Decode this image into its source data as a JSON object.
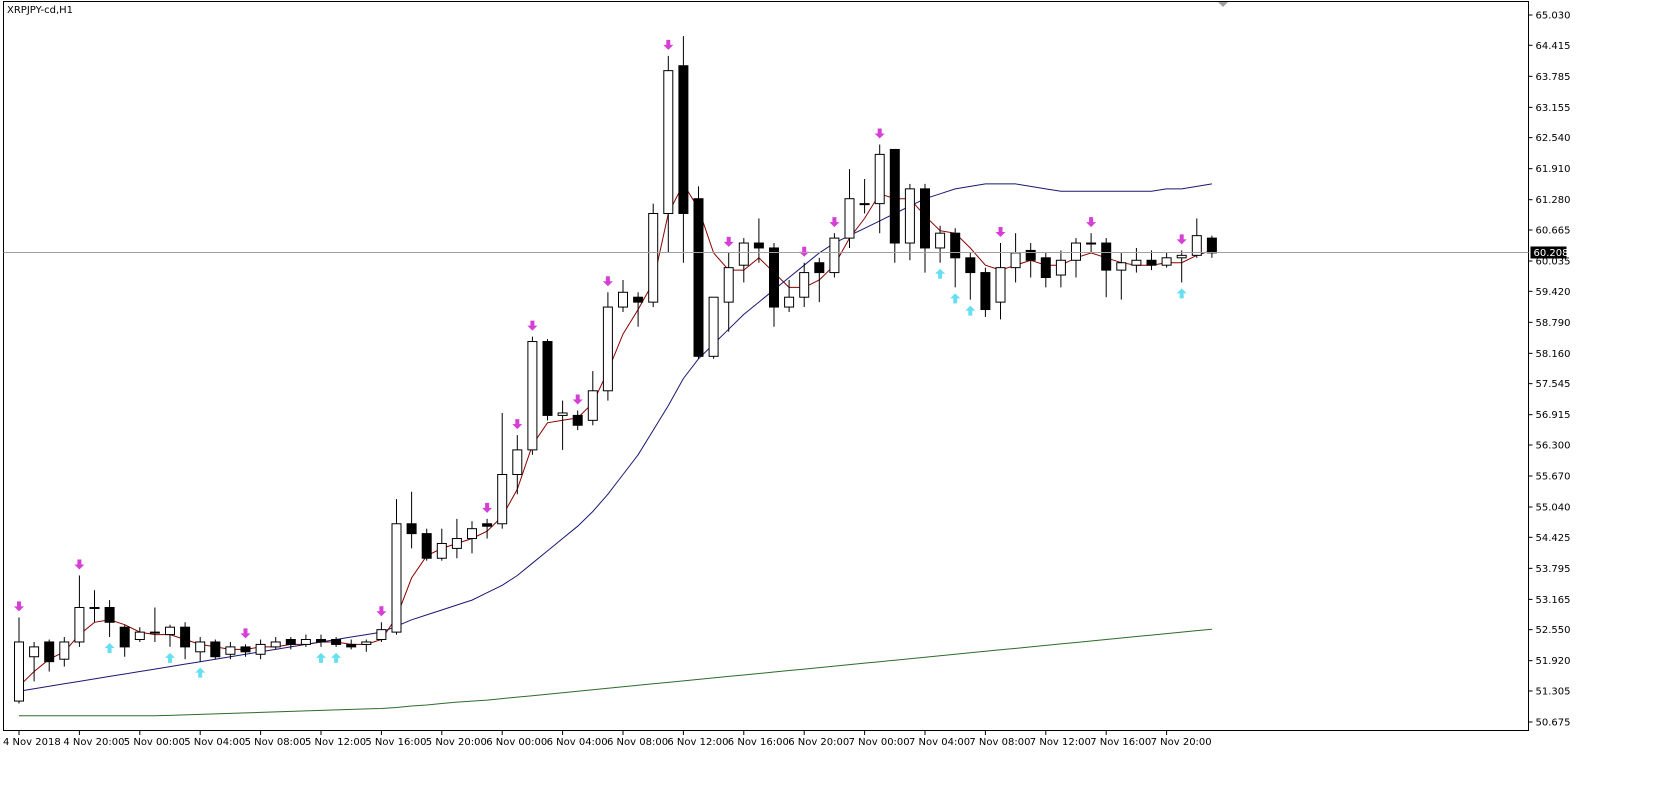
{
  "window": {
    "title": "XRPJPY-cd,H1"
  },
  "colors": {
    "background": "#ffffff",
    "bull_candle": "#ffffff",
    "bear_candle": "#000000",
    "candle_outline": "#000000",
    "ma_fast": "#8b0000",
    "ma_mid": "#191970",
    "ma_slow": "#2e6b2e",
    "arrow_sell": "#d63fd6",
    "arrow_buy": "#66e0f0",
    "price_line": "#a0a0a0",
    "current_price_bg": "#000000",
    "current_price_fg": "#ffffff"
  },
  "chart_data": {
    "type": "candlestick",
    "symbol": "XRPJPY-cd",
    "timeframe": "H1",
    "current_price": "60.208",
    "ylim": [
      50.675,
      65.03
    ],
    "y_ticks": [
      "65.030",
      "64.415",
      "63.785",
      "63.155",
      "62.540",
      "61.910",
      "61.280",
      "60.665",
      "60.035",
      "59.420",
      "58.790",
      "58.160",
      "57.545",
      "56.915",
      "56.300",
      "55.670",
      "55.040",
      "54.425",
      "53.795",
      "53.165",
      "52.550",
      "51.920",
      "51.305",
      "50.675"
    ],
    "x_ticks": [
      {
        "i": 0,
        "label": "4 Nov 2018"
      },
      {
        "i": 4,
        "label": "4 Nov 20:00"
      },
      {
        "i": 8,
        "label": "5 Nov 00:00"
      },
      {
        "i": 12,
        "label": "5 Nov 04:00"
      },
      {
        "i": 16,
        "label": "5 Nov 08:00"
      },
      {
        "i": 20,
        "label": "5 Nov 12:00"
      },
      {
        "i": 24,
        "label": "5 Nov 16:00"
      },
      {
        "i": 28,
        "label": "5 Nov 20:00"
      },
      {
        "i": 32,
        "label": "6 Nov 00:00"
      },
      {
        "i": 36,
        "label": "6 Nov 04:00"
      },
      {
        "i": 40,
        "label": "6 Nov 08:00"
      },
      {
        "i": 44,
        "label": "6 Nov 12:00"
      },
      {
        "i": 48,
        "label": "6 Nov 16:00"
      },
      {
        "i": 52,
        "label": "6 Nov 20:00"
      },
      {
        "i": 56,
        "label": "7 Nov 00:00"
      },
      {
        "i": 60,
        "label": "7 Nov 04:00"
      },
      {
        "i": 64,
        "label": "7 Nov 08:00"
      },
      {
        "i": 68,
        "label": "7 Nov 12:00"
      },
      {
        "i": 72,
        "label": "7 Nov 16:00"
      },
      {
        "i": 76,
        "label": "7 Nov 20:00"
      }
    ],
    "candles": [
      [
        51.1,
        52.3,
        52.8,
        51.05
      ],
      [
        52.0,
        52.2,
        52.3,
        51.5
      ],
      [
        52.3,
        51.9,
        52.35,
        51.7
      ],
      [
        51.95,
        52.3,
        52.4,
        51.8
      ],
      [
        52.3,
        53.0,
        53.65,
        52.2
      ],
      [
        53.0,
        53.0,
        53.35,
        52.7
      ],
      [
        53.0,
        52.7,
        53.15,
        52.4
      ],
      [
        52.6,
        52.2,
        52.65,
        52.0
      ],
      [
        52.35,
        52.5,
        52.6,
        52.3
      ],
      [
        52.5,
        52.5,
        53.0,
        52.3
      ],
      [
        52.45,
        52.6,
        52.65,
        52.2
      ],
      [
        52.6,
        52.2,
        52.7,
        51.95
      ],
      [
        52.1,
        52.3,
        52.4,
        51.9
      ],
      [
        52.3,
        52.0,
        52.35,
        51.95
      ],
      [
        52.05,
        52.2,
        52.3,
        51.95
      ],
      [
        52.2,
        52.1,
        52.25,
        52.0
      ],
      [
        52.05,
        52.25,
        52.35,
        51.95
      ],
      [
        52.2,
        52.3,
        52.4,
        52.15
      ],
      [
        52.35,
        52.25,
        52.4,
        52.15
      ],
      [
        52.25,
        52.35,
        52.45,
        52.2
      ],
      [
        52.35,
        52.3,
        52.45,
        52.2
      ],
      [
        52.35,
        52.25,
        52.4,
        52.2
      ],
      [
        52.25,
        52.2,
        52.35,
        52.15
      ],
      [
        52.25,
        52.3,
        52.35,
        52.1
      ],
      [
        52.35,
        52.55,
        52.7,
        52.3
      ],
      [
        52.5,
        54.7,
        55.2,
        52.45
      ],
      [
        54.7,
        54.5,
        55.35,
        54.2
      ],
      [
        54.5,
        54.0,
        54.6,
        53.95
      ],
      [
        54.0,
        54.3,
        54.6,
        53.95
      ],
      [
        54.2,
        54.4,
        54.8,
        54.0
      ],
      [
        54.4,
        54.6,
        54.75,
        54.1
      ],
      [
        54.7,
        54.65,
        54.8,
        54.4
      ],
      [
        54.7,
        55.7,
        56.95,
        54.6
      ],
      [
        55.7,
        56.2,
        56.5,
        55.3
      ],
      [
        56.2,
        58.4,
        58.5,
        56.1
      ],
      [
        58.4,
        56.9,
        58.45,
        56.8
      ],
      [
        56.9,
        56.95,
        57.2,
        56.2
      ],
      [
        56.9,
        56.7,
        57.0,
        56.6
      ],
      [
        56.8,
        57.4,
        57.8,
        56.7
      ],
      [
        57.4,
        59.1,
        59.4,
        57.2
      ],
      [
        59.1,
        59.4,
        59.65,
        59.0
      ],
      [
        59.3,
        59.2,
        59.4,
        58.7
      ],
      [
        59.2,
        61.0,
        61.2,
        59.1
      ],
      [
        61.0,
        63.9,
        64.2,
        60.2
      ],
      [
        64.0,
        61.0,
        64.6,
        60.0
      ],
      [
        61.3,
        58.1,
        61.55,
        58.05
      ],
      [
        58.1,
        59.3,
        59.3,
        58.05
      ],
      [
        59.2,
        59.9,
        60.2,
        58.6
      ],
      [
        59.95,
        60.4,
        60.5,
        59.6
      ],
      [
        60.4,
        60.3,
        60.9,
        60.0
      ],
      [
        60.3,
        59.1,
        60.4,
        58.7
      ],
      [
        59.1,
        59.3,
        59.65,
        59.0
      ],
      [
        59.3,
        59.8,
        60.0,
        59.1
      ],
      [
        60.0,
        59.8,
        60.1,
        59.2
      ],
      [
        59.8,
        60.5,
        60.6,
        59.7
      ],
      [
        60.5,
        61.3,
        61.9,
        60.3
      ],
      [
        61.2,
        61.2,
        61.7,
        61.0
      ],
      [
        61.2,
        62.2,
        62.4,
        60.6
      ],
      [
        62.3,
        60.4,
        62.3,
        60.0
      ],
      [
        60.4,
        61.5,
        61.6,
        60.05
      ],
      [
        61.5,
        60.3,
        61.6,
        59.8
      ],
      [
        60.3,
        60.6,
        60.75,
        60.0
      ],
      [
        60.6,
        60.1,
        60.7,
        59.5
      ],
      [
        60.1,
        59.8,
        60.2,
        59.25
      ],
      [
        59.8,
        59.05,
        59.9,
        58.9
      ],
      [
        59.2,
        59.9,
        60.4,
        58.85
      ],
      [
        59.9,
        60.2,
        60.6,
        59.6
      ],
      [
        60.25,
        60.05,
        60.4,
        59.7
      ],
      [
        60.1,
        59.7,
        60.2,
        59.5
      ],
      [
        59.75,
        60.05,
        60.25,
        59.5
      ],
      [
        60.05,
        60.4,
        60.5,
        59.7
      ],
      [
        60.4,
        60.4,
        60.6,
        60.2
      ],
      [
        60.4,
        59.85,
        60.5,
        59.3
      ],
      [
        59.85,
        60.0,
        60.2,
        59.25
      ],
      [
        59.95,
        60.05,
        60.3,
        59.8
      ],
      [
        60.05,
        59.95,
        60.25,
        59.85
      ],
      [
        59.95,
        60.1,
        60.2,
        59.9
      ],
      [
        60.1,
        60.15,
        60.25,
        59.6
      ],
      [
        60.15,
        60.55,
        60.9,
        60.1
      ],
      [
        60.5,
        60.2,
        60.55,
        60.1
      ]
    ],
    "series": [
      {
        "type": "ma",
        "color_key": "ma_fast",
        "values": [
          51.4,
          51.7,
          51.95,
          52.1,
          52.45,
          52.7,
          52.75,
          52.65,
          52.5,
          52.45,
          52.45,
          52.35,
          52.25,
          52.2,
          52.15,
          52.15,
          52.2,
          52.2,
          52.25,
          52.25,
          52.3,
          52.3,
          52.25,
          52.25,
          52.35,
          52.8,
          53.6,
          54.05,
          54.2,
          54.3,
          54.4,
          54.55,
          54.85,
          55.4,
          56.3,
          56.75,
          56.8,
          56.85,
          57.15,
          57.8,
          58.55,
          59.05,
          59.6,
          61.0,
          61.6,
          61.1,
          60.2,
          59.85,
          59.85,
          60.1,
          59.8,
          59.5,
          59.5,
          59.65,
          59.95,
          60.5,
          60.9,
          61.4,
          61.3,
          61.3,
          60.95,
          60.65,
          60.6,
          60.3,
          59.95,
          59.85,
          59.95,
          60.05,
          59.95,
          59.95,
          60.1,
          60.2,
          60.1,
          60.0,
          59.95,
          59.95,
          60.0,
          60.0,
          60.15,
          60.25
        ]
      },
      {
        "type": "ma",
        "color_key": "ma_mid",
        "values": [
          51.3,
          51.35,
          51.4,
          51.45,
          51.5,
          51.55,
          51.6,
          51.65,
          51.7,
          51.75,
          51.8,
          51.85,
          51.9,
          51.95,
          52.0,
          52.05,
          52.1,
          52.15,
          52.2,
          52.25,
          52.3,
          52.35,
          52.4,
          52.45,
          52.5,
          52.62,
          52.75,
          52.85,
          52.95,
          53.05,
          53.15,
          53.3,
          53.45,
          53.65,
          53.9,
          54.15,
          54.4,
          54.65,
          54.95,
          55.3,
          55.7,
          56.1,
          56.6,
          57.1,
          57.65,
          58.05,
          58.35,
          58.65,
          58.95,
          59.2,
          59.45,
          59.7,
          59.95,
          60.2,
          60.4,
          60.55,
          60.7,
          60.85,
          61.0,
          61.15,
          61.3,
          61.4,
          61.5,
          61.55,
          61.6,
          61.6,
          61.6,
          61.55,
          61.5,
          61.45,
          61.45,
          61.45,
          61.45,
          61.45,
          61.45,
          61.45,
          61.5,
          61.5,
          61.55,
          61.6
        ]
      },
      {
        "type": "ma",
        "color_key": "ma_slow",
        "values": [
          50.8,
          50.8,
          50.8,
          50.8,
          50.8,
          50.8,
          50.8,
          50.8,
          50.8,
          50.8,
          50.81,
          50.82,
          50.83,
          50.84,
          50.85,
          50.86,
          50.87,
          50.88,
          50.89,
          50.9,
          50.91,
          50.92,
          50.93,
          50.94,
          50.95,
          50.97,
          51.0,
          51.02,
          51.05,
          51.08,
          51.1,
          51.12,
          51.15,
          51.18,
          51.21,
          51.24,
          51.27,
          51.3,
          51.33,
          51.36,
          51.39,
          51.42,
          51.45,
          51.48,
          51.51,
          51.54,
          51.57,
          51.6,
          51.63,
          51.66,
          51.69,
          51.72,
          51.75,
          51.78,
          51.81,
          51.84,
          51.87,
          51.9,
          51.93,
          51.96,
          51.99,
          52.02,
          52.05,
          52.08,
          52.11,
          52.14,
          52.17,
          52.2,
          52.23,
          52.26,
          52.29,
          52.32,
          52.35,
          52.38,
          52.41,
          52.44,
          52.47,
          52.5,
          52.53,
          52.56
        ]
      }
    ],
    "sell_arrows": [
      0,
      4,
      15,
      24,
      31,
      33,
      34,
      37,
      39,
      43,
      47,
      52,
      54,
      57,
      65,
      71,
      77
    ],
    "buy_arrows": [
      6,
      10,
      12,
      20,
      21,
      61,
      62,
      63,
      77
    ]
  }
}
